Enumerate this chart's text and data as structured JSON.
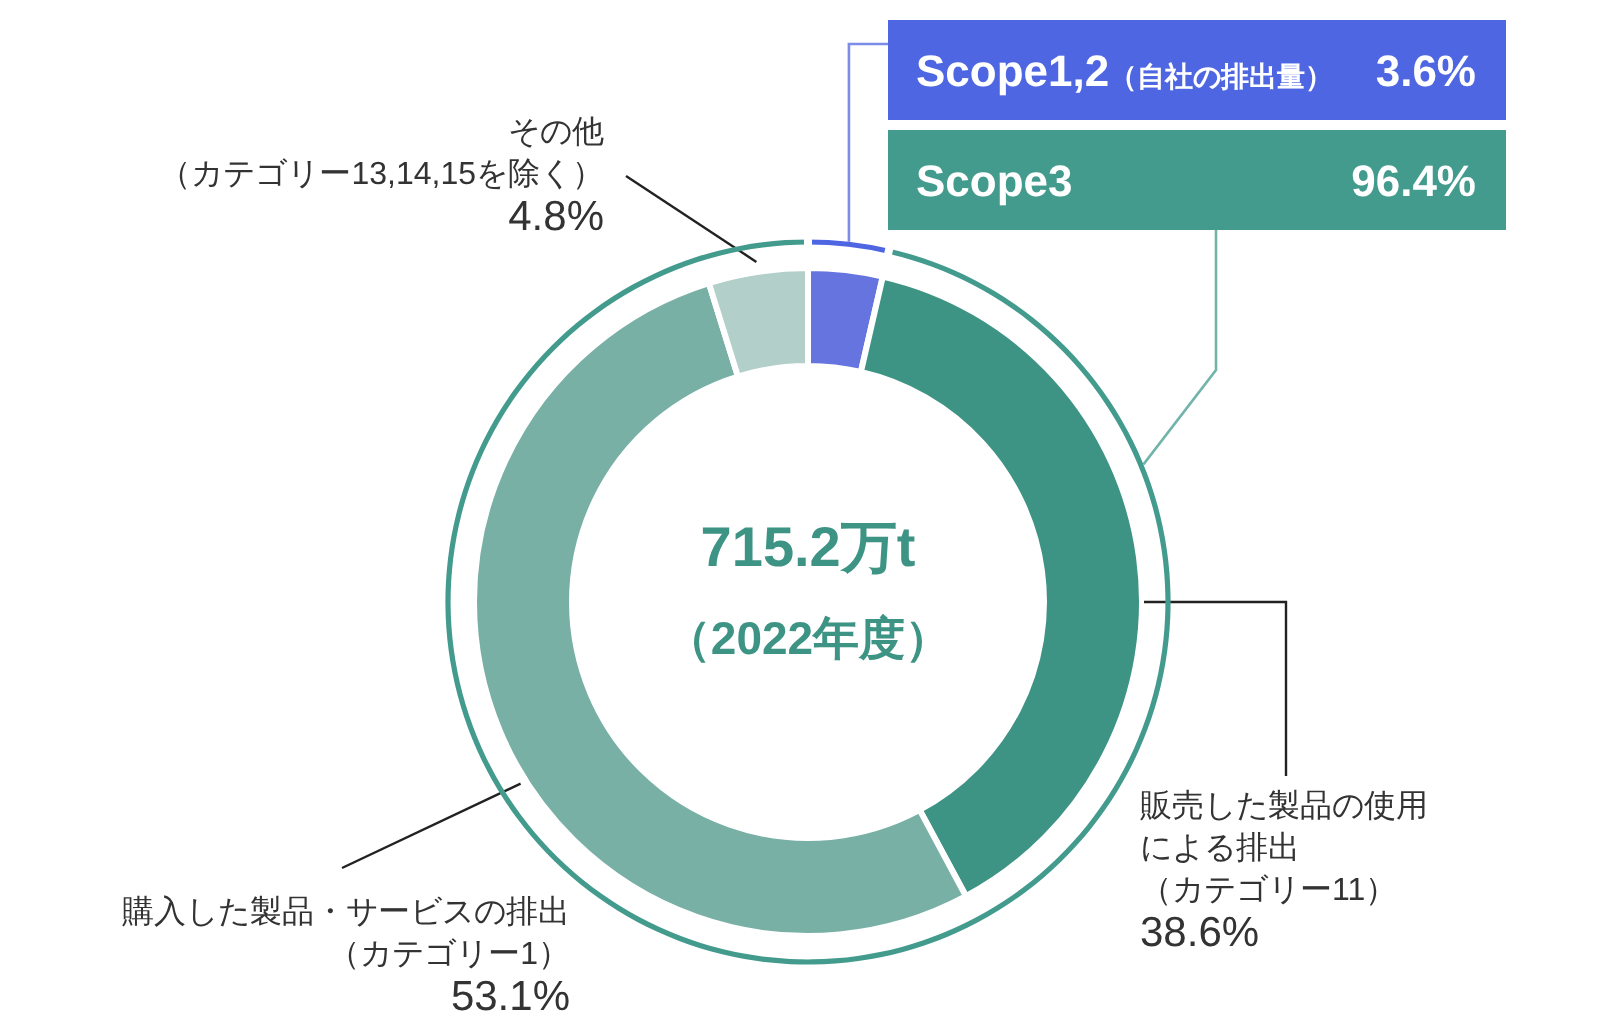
{
  "chart_data": [
    {
      "type": "donut",
      "categories": [
        null,
        "販売した製品の使用による排出（カテゴリー11）",
        "購入した製品・サービスの排出（カテゴリー1）",
        "その他（カテゴリー13,14,15を除く）"
      ],
      "values": [
        3.6,
        38.6,
        53.1,
        4.8
      ],
      "colors": [
        "#6674e0",
        "#3e9484",
        "#79b0a6",
        "#b2cfc9"
      ],
      "value_labels": [
        null,
        "38.6%",
        "53.1%",
        "4.8%"
      ],
      "annotations": [
        "715.2万t",
        "（2022年度）"
      ]
    },
    {
      "type": "donut",
      "categories": [
        "Scope1,2（自社の排出量）",
        "Scope3"
      ],
      "values": [
        3.6,
        96.4
      ],
      "colors": [
        "#4f66e2",
        "#439b8d"
      ],
      "annotations": [
        "3.6%",
        "96.4%"
      ]
    }
  ]
}
